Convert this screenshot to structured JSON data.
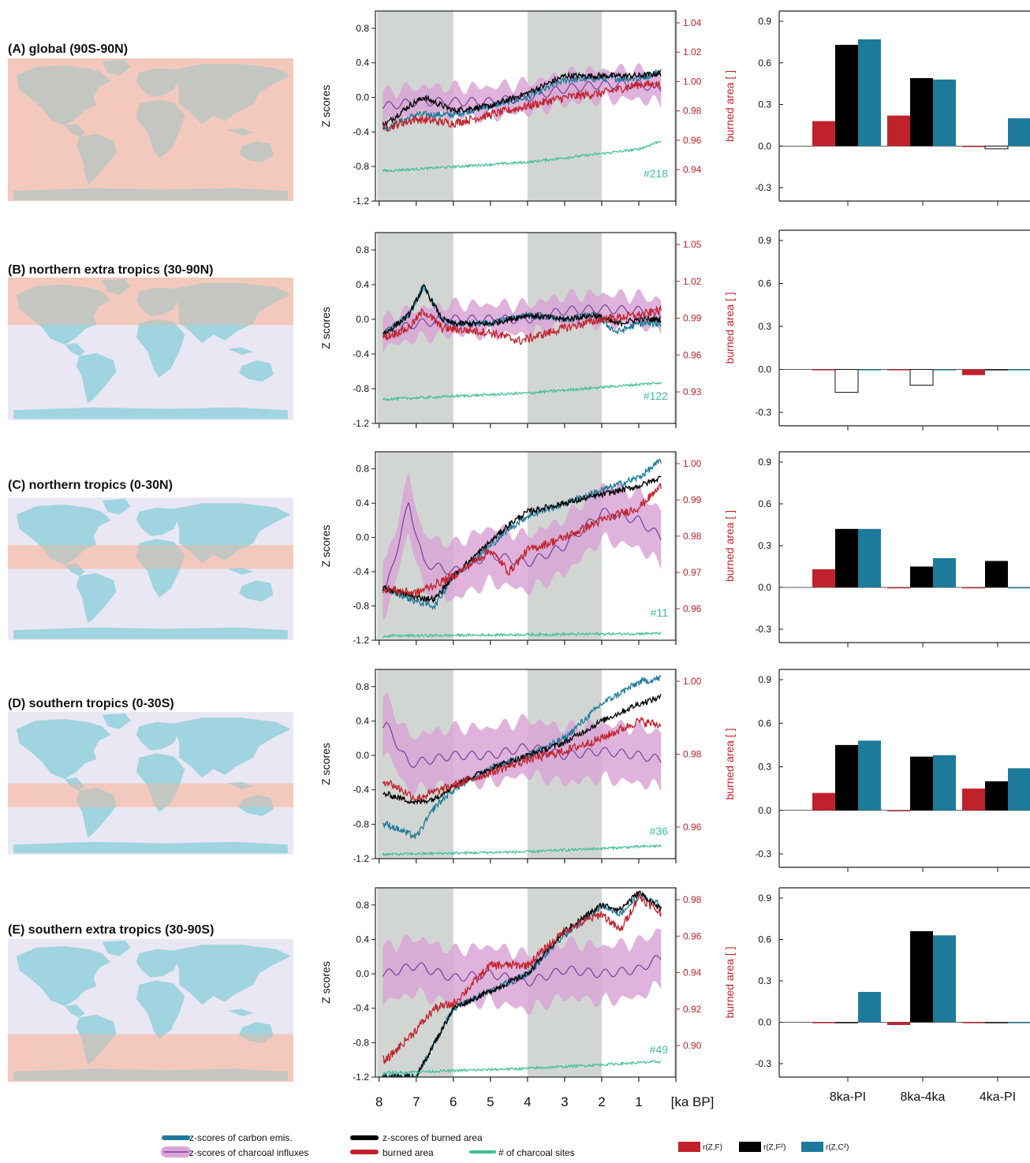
{
  "colors": {
    "carbon": "#1d7a9a",
    "burned": "#c0222b",
    "zburned": "#000000",
    "charcoal": "#7c3d9e",
    "charcoal_band": "#d9a6d6",
    "sites": "#3dbf9a",
    "shade": "#d2d6d2",
    "map_land": "#9fd4e0",
    "map_highlight": "#f3c9bd",
    "map_bg": "#e9e7f3"
  },
  "panels": [
    {
      "id": "A",
      "title": "(A) global (90S-90N)",
      "site_count": "#218",
      "ba_ticks": [
        "0.94",
        "0.96",
        "0.98",
        "1.00",
        "1.02",
        "1.04"
      ],
      "band": [
        -90,
        90
      ]
    },
    {
      "id": "B",
      "title": "(B) northern extra tropics (30-90N)",
      "site_count": "#122",
      "ba_ticks": [
        "0.93",
        "0.96",
        "0.99",
        "1.02",
        "1.05"
      ],
      "band": [
        30,
        90
      ]
    },
    {
      "id": "C",
      "title": "(C) northern tropics (0-30N)",
      "site_count": "#11",
      "ba_ticks": [
        "0.96",
        "0.97",
        "0.98",
        "0.99",
        "1.00"
      ],
      "band": [
        0,
        30
      ]
    },
    {
      "id": "D",
      "title": "(D) southern tropics (0-30S)",
      "site_count": "#36",
      "ba_ticks": [
        "0.96",
        "0.98",
        "1.00"
      ],
      "band": [
        -30,
        0
      ]
    },
    {
      "id": "E",
      "title": "(E) southern extra tropics (30-90S)",
      "site_count": "#49",
      "ba_ticks": [
        "0.90",
        "0.92",
        "0.94",
        "0.96",
        "0.98"
      ],
      "band": [
        -90,
        -30
      ]
    }
  ],
  "axis_text": {
    "ylabel_left": "Z scores",
    "ylabel_right": "burned area [ ]",
    "z_ticks": [
      "0.8",
      "0.4",
      "0.0",
      "-0.4",
      "-0.8",
      "-1.2"
    ],
    "x_ticks": [
      "8",
      "7",
      "6",
      "5",
      "4",
      "3",
      "2",
      "1"
    ],
    "x_unit": "[ka BP]",
    "bar_ticks": [
      "0.9",
      "0.6",
      "0.3",
      "0.0",
      "-0.3"
    ],
    "bar_categories": [
      "8ka-PI",
      "8ka-4ka",
      "4ka-PI"
    ]
  },
  "legend": {
    "carbon": "z-scores of carbon emis.",
    "charcoal": "z-scores of charcoal influxes",
    "zburned": "z-scores of burned area",
    "burned": "burned area",
    "sites": "# of charcoal sites",
    "r1": "r(Z,F)",
    "r2": "r(Z,F²)",
    "r3": "r(Z,C²)"
  },
  "chart_data": [
    {
      "type": "bar",
      "panel": "A",
      "categories": [
        "8ka-PI",
        "8ka-4ka",
        "4ka-PI"
      ],
      "series": [
        {
          "name": "r(Z,F)",
          "values": [
            0.18,
            0.22,
            0.0
          ]
        },
        {
          "name": "r(Z,F²)",
          "values": [
            0.73,
            0.49,
            -0.02
          ]
        },
        {
          "name": "r(Z,C²)",
          "values": [
            0.77,
            0.48,
            0.2
          ]
        }
      ],
      "ylim": [
        -0.45,
        0.95
      ]
    },
    {
      "type": "bar",
      "panel": "B",
      "categories": [
        "8ka-PI",
        "8ka-4ka",
        "4ka-PI"
      ],
      "series": [
        {
          "name": "r(Z,F)",
          "values": [
            0.0,
            0.0,
            -0.04
          ]
        },
        {
          "name": "r(Z,F²)",
          "values": [
            -0.16,
            -0.11,
            0.0
          ]
        },
        {
          "name": "r(Z,C²)",
          "values": [
            0.0,
            0.0,
            0.0
          ]
        }
      ],
      "ylim": [
        -0.45,
        0.95
      ]
    },
    {
      "type": "bar",
      "panel": "C",
      "categories": [
        "8ka-PI",
        "8ka-4ka",
        "4ka-PI"
      ],
      "series": [
        {
          "name": "r(Z,F)",
          "values": [
            0.13,
            0.0,
            0.0
          ]
        },
        {
          "name": "r(Z,F²)",
          "values": [
            0.42,
            0.15,
            0.19
          ]
        },
        {
          "name": "r(Z,C²)",
          "values": [
            0.42,
            0.21,
            0.0
          ]
        }
      ],
      "ylim": [
        -0.45,
        0.95
      ]
    },
    {
      "type": "bar",
      "panel": "D",
      "categories": [
        "8ka-PI",
        "8ka-4ka",
        "4ka-PI"
      ],
      "series": [
        {
          "name": "r(Z,F)",
          "values": [
            0.12,
            0.0,
            0.15
          ]
        },
        {
          "name": "r(Z,F²)",
          "values": [
            0.45,
            0.37,
            0.2
          ]
        },
        {
          "name": "r(Z,C²)",
          "values": [
            0.48,
            0.38,
            0.29
          ]
        }
      ],
      "ylim": [
        -0.45,
        0.95
      ]
    },
    {
      "type": "bar",
      "panel": "E",
      "categories": [
        "8ka-PI",
        "8ka-4ka",
        "4ka-PI"
      ],
      "series": [
        {
          "name": "r(Z,F)",
          "values": [
            0.0,
            -0.02,
            0.0
          ]
        },
        {
          "name": "r(Z,F²)",
          "values": [
            0.0,
            0.66,
            0.0
          ]
        },
        {
          "name": "r(Z,C²)",
          "values": [
            0.22,
            0.63,
            0.0
          ]
        }
      ],
      "ylim": [
        -0.45,
        0.95
      ]
    },
    {
      "type": "line",
      "panel": "A",
      "xlim": [
        8.1,
        0
      ],
      "ylim": [
        -1.2,
        1.0
      ],
      "series_means": {
        "carbon": [
          [
            7.8,
            -0.35
          ],
          [
            7.0,
            -0.2
          ],
          [
            6.0,
            -0.2
          ],
          [
            5.0,
            -0.1
          ],
          [
            4.0,
            0.0
          ],
          [
            3.0,
            0.2
          ],
          [
            2.0,
            0.22
          ],
          [
            1.0,
            0.22
          ],
          [
            0.4,
            0.3
          ]
        ],
        "zburned": [
          [
            7.8,
            -0.3
          ],
          [
            7.2,
            -0.1
          ],
          [
            6.8,
            0.0
          ],
          [
            6.0,
            -0.15
          ],
          [
            5.0,
            -0.1
          ],
          [
            4.0,
            0.05
          ],
          [
            3.0,
            0.25
          ],
          [
            2.0,
            0.25
          ],
          [
            1.0,
            0.25
          ],
          [
            0.4,
            0.28
          ]
        ],
        "burned": [
          [
            7.8,
            -0.35
          ],
          [
            7.0,
            -0.25
          ],
          [
            6.0,
            -0.3
          ],
          [
            5.0,
            -0.2
          ],
          [
            4.0,
            -0.1
          ],
          [
            3.0,
            0.0
          ],
          [
            2.0,
            0.05
          ],
          [
            1.0,
            0.15
          ],
          [
            0.4,
            0.15
          ]
        ],
        "charcoal": [
          [
            7.8,
            -0.1
          ],
          [
            7.0,
            -0.05
          ],
          [
            6.0,
            -0.05
          ],
          [
            5.0,
            -0.05
          ],
          [
            4.0,
            0.0
          ],
          [
            3.0,
            0.1
          ],
          [
            2.0,
            0.15
          ],
          [
            1.0,
            0.15
          ],
          [
            0.4,
            0.1
          ]
        ],
        "sites": [
          [
            7.8,
            -0.85
          ],
          [
            4.0,
            -0.75
          ],
          [
            1.0,
            -0.6
          ],
          [
            0.4,
            -0.5
          ]
        ]
      }
    },
    {
      "type": "line",
      "panel": "B",
      "xlim": [
        8.1,
        0
      ],
      "ylim": [
        -1.2,
        1.0
      ],
      "series_means": {
        "carbon": [
          [
            7.8,
            -0.15
          ],
          [
            7.2,
            0.05
          ],
          [
            6.8,
            0.38
          ],
          [
            6.3,
            0.0
          ],
          [
            6.0,
            -0.05
          ],
          [
            5.0,
            -0.05
          ],
          [
            4.0,
            0.05
          ],
          [
            3.0,
            0.0
          ],
          [
            2.2,
            0.05
          ],
          [
            1.6,
            -0.15
          ],
          [
            1.0,
            -0.05
          ],
          [
            0.4,
            -0.05
          ]
        ],
        "zburned": [
          [
            7.8,
            -0.15
          ],
          [
            7.2,
            0.05
          ],
          [
            6.8,
            0.38
          ],
          [
            6.3,
            0.0
          ],
          [
            6.0,
            -0.05
          ],
          [
            5.0,
            -0.05
          ],
          [
            4.0,
            0.05
          ],
          [
            3.0,
            0.0
          ],
          [
            2.2,
            0.05
          ],
          [
            1.6,
            -0.05
          ],
          [
            1.0,
            0.0
          ],
          [
            0.4,
            0.0
          ]
        ],
        "burned": [
          [
            7.8,
            -0.2
          ],
          [
            7.2,
            -0.1
          ],
          [
            6.8,
            0.1
          ],
          [
            6.3,
            -0.1
          ],
          [
            5.0,
            -0.15
          ],
          [
            4.2,
            -0.25
          ],
          [
            3.0,
            -0.1
          ],
          [
            2.0,
            0.0
          ],
          [
            1.0,
            0.05
          ],
          [
            0.4,
            0.1
          ]
        ],
        "charcoal": [
          [
            7.8,
            -0.15
          ],
          [
            7.0,
            -0.05
          ],
          [
            6.0,
            0.0
          ],
          [
            5.0,
            0.0
          ],
          [
            4.0,
            0.0
          ],
          [
            3.0,
            0.1
          ],
          [
            2.0,
            0.12
          ],
          [
            1.0,
            0.1
          ],
          [
            0.4,
            0.05
          ]
        ],
        "sites": [
          [
            7.8,
            -0.92
          ],
          [
            4.0,
            -0.85
          ],
          [
            0.4,
            -0.73
          ]
        ]
      }
    },
    {
      "type": "line",
      "panel": "C",
      "xlim": [
        8.1,
        0
      ],
      "ylim": [
        -1.2,
        1.0
      ],
      "series_means": {
        "carbon": [
          [
            7.8,
            -0.6
          ],
          [
            7.0,
            -0.75
          ],
          [
            6.5,
            -0.8
          ],
          [
            6.0,
            -0.45
          ],
          [
            5.0,
            -0.1
          ],
          [
            4.5,
            0.1
          ],
          [
            4.0,
            0.25
          ],
          [
            3.0,
            0.4
          ],
          [
            2.0,
            0.55
          ],
          [
            1.0,
            0.7
          ],
          [
            0.4,
            0.9
          ]
        ],
        "zburned": [
          [
            7.8,
            -0.6
          ],
          [
            7.0,
            -0.7
          ],
          [
            6.5,
            -0.72
          ],
          [
            6.0,
            -0.45
          ],
          [
            5.0,
            -0.05
          ],
          [
            4.5,
            0.15
          ],
          [
            4.0,
            0.3
          ],
          [
            3.0,
            0.4
          ],
          [
            2.0,
            0.5
          ],
          [
            1.0,
            0.6
          ],
          [
            0.4,
            0.7
          ]
        ],
        "burned": [
          [
            7.8,
            -0.6
          ],
          [
            7.0,
            -0.65
          ],
          [
            6.0,
            -0.45
          ],
          [
            5.0,
            -0.15
          ],
          [
            4.5,
            -0.4
          ],
          [
            4.0,
            -0.15
          ],
          [
            3.0,
            0.0
          ],
          [
            2.0,
            0.2
          ],
          [
            1.0,
            0.35
          ],
          [
            0.4,
            0.6
          ]
        ],
        "charcoal": [
          [
            7.8,
            -0.6
          ],
          [
            7.2,
            0.4
          ],
          [
            6.8,
            -0.3
          ],
          [
            6.0,
            -0.4
          ],
          [
            5.0,
            -0.2
          ],
          [
            4.0,
            -0.3
          ],
          [
            3.0,
            -0.1
          ],
          [
            2.0,
            0.3
          ],
          [
            1.0,
            0.2
          ],
          [
            0.4,
            0.0
          ]
        ],
        "sites": [
          [
            7.8,
            -1.15
          ],
          [
            0.4,
            -1.12
          ]
        ]
      }
    },
    {
      "type": "line",
      "panel": "D",
      "xlim": [
        8.1,
        0
      ],
      "ylim": [
        -1.2,
        1.0
      ],
      "series_means": {
        "carbon": [
          [
            7.8,
            -0.8
          ],
          [
            7.0,
            -0.95
          ],
          [
            6.5,
            -0.6
          ],
          [
            6.0,
            -0.4
          ],
          [
            5.0,
            -0.15
          ],
          [
            4.0,
            0.0
          ],
          [
            3.0,
            0.2
          ],
          [
            2.0,
            0.6
          ],
          [
            1.0,
            0.85
          ],
          [
            0.4,
            0.9
          ]
        ],
        "zburned": [
          [
            7.8,
            -0.45
          ],
          [
            7.0,
            -0.55
          ],
          [
            6.5,
            -0.5
          ],
          [
            6.0,
            -0.35
          ],
          [
            5.0,
            -0.15
          ],
          [
            4.0,
            0.0
          ],
          [
            3.0,
            0.15
          ],
          [
            2.0,
            0.4
          ],
          [
            1.0,
            0.6
          ],
          [
            0.4,
            0.68
          ]
        ],
        "burned": [
          [
            7.8,
            -0.3
          ],
          [
            7.0,
            -0.5
          ],
          [
            6.0,
            -0.35
          ],
          [
            5.0,
            -0.2
          ],
          [
            4.0,
            -0.05
          ],
          [
            3.0,
            0.05
          ],
          [
            2.0,
            0.2
          ],
          [
            1.0,
            0.4
          ],
          [
            0.4,
            0.35
          ]
        ],
        "charcoal": [
          [
            7.8,
            0.35
          ],
          [
            7.2,
            -0.1
          ],
          [
            6.0,
            0.0
          ],
          [
            5.0,
            0.0
          ],
          [
            4.0,
            0.1
          ],
          [
            3.0,
            0.0
          ],
          [
            2.0,
            0.05
          ],
          [
            1.0,
            0.0
          ],
          [
            0.4,
            -0.05
          ]
        ],
        "sites": [
          [
            7.8,
            -1.15
          ],
          [
            4.0,
            -1.12
          ],
          [
            0.4,
            -1.05
          ]
        ]
      }
    },
    {
      "type": "line",
      "panel": "E",
      "xlim": [
        8.1,
        0
      ],
      "ylim": [
        -1.2,
        1.0
      ],
      "series_means": {
        "carbon": [
          [
            7.4,
            -1.2
          ],
          [
            7.0,
            -1.2
          ],
          [
            6.5,
            -0.8
          ],
          [
            6.0,
            -0.4
          ],
          [
            5.0,
            -0.2
          ],
          [
            4.0,
            0.0
          ],
          [
            3.0,
            0.45
          ],
          [
            2.0,
            0.8
          ],
          [
            1.5,
            0.7
          ],
          [
            1.0,
            0.9
          ],
          [
            0.4,
            0.8
          ]
        ],
        "zburned": [
          [
            7.4,
            -1.2
          ],
          [
            7.0,
            -1.2
          ],
          [
            6.5,
            -0.8
          ],
          [
            6.0,
            -0.4
          ],
          [
            5.0,
            -0.2
          ],
          [
            4.0,
            0.0
          ],
          [
            3.0,
            0.5
          ],
          [
            2.0,
            0.8
          ],
          [
            1.5,
            0.75
          ],
          [
            1.0,
            0.95
          ],
          [
            0.4,
            0.75
          ]
        ],
        "burned": [
          [
            7.8,
            -1.0
          ],
          [
            7.0,
            -0.65
          ],
          [
            6.5,
            -0.4
          ],
          [
            6.0,
            -0.35
          ],
          [
            5.0,
            0.1
          ],
          [
            4.0,
            0.1
          ],
          [
            3.0,
            0.5
          ],
          [
            2.0,
            0.7
          ],
          [
            1.5,
            0.5
          ],
          [
            1.0,
            0.9
          ],
          [
            0.4,
            0.7
          ]
        ],
        "charcoal": [
          [
            7.8,
            0.0
          ],
          [
            7.0,
            0.1
          ],
          [
            6.0,
            -0.05
          ],
          [
            5.0,
            0.0
          ],
          [
            4.0,
            -0.1
          ],
          [
            3.0,
            0.05
          ],
          [
            2.0,
            0.0
          ],
          [
            1.0,
            0.05
          ],
          [
            0.4,
            0.2
          ]
        ],
        "sites": [
          [
            7.8,
            -1.15
          ],
          [
            4.0,
            -1.1
          ],
          [
            0.4,
            -1.02
          ]
        ]
      }
    }
  ]
}
